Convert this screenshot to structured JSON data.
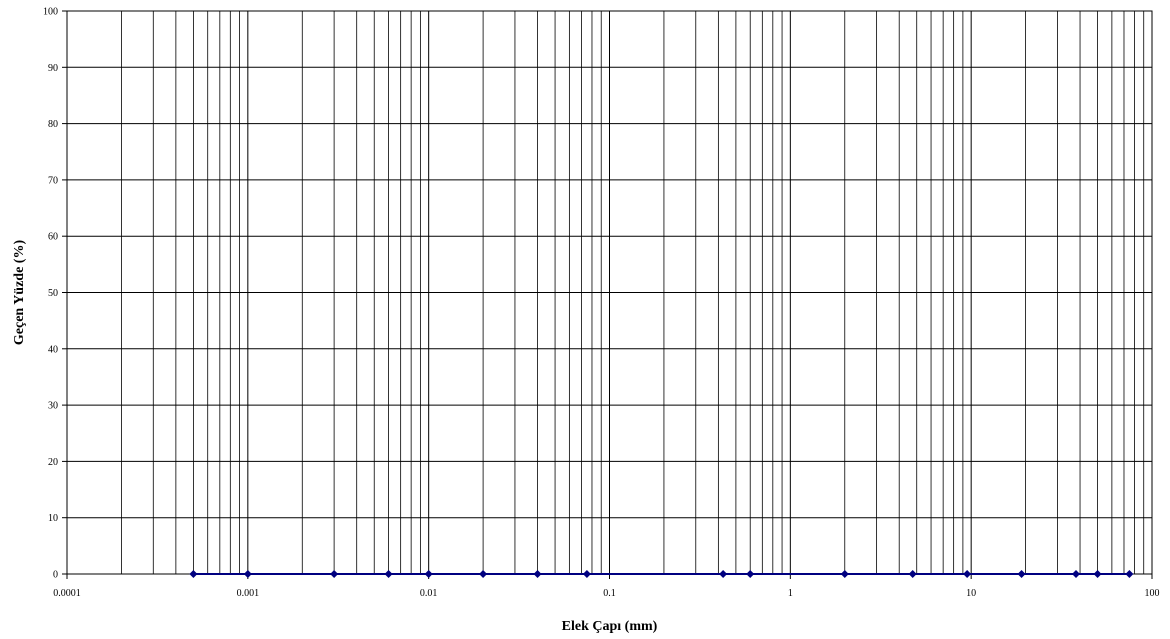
{
  "chart_data": {
    "type": "line",
    "title": "",
    "xlabel": "Elek Çapı (mm)",
    "ylabel": "Geçen Yüzde (%)",
    "x_scale": "log",
    "xlim": [
      0.0001,
      100
    ],
    "ylim": [
      0,
      100
    ],
    "x_ticks": [
      "0.0001",
      "0.001",
      "0.01",
      "0.1",
      "1",
      "10",
      "100"
    ],
    "y_ticks": [
      "0",
      "10",
      "20",
      "30",
      "40",
      "50",
      "60",
      "70",
      "80",
      "90",
      "100"
    ],
    "grid": true,
    "legend": "none",
    "series": [
      {
        "color": "#000080",
        "marker": "diamond",
        "x": [
          0.0005,
          0.001,
          0.003,
          0.006,
          0.01,
          0.02,
          0.04,
          0.075,
          0.425,
          0.6,
          2,
          4.75,
          9.5,
          19,
          38,
          50,
          75
        ],
        "y": [
          0,
          0,
          0,
          0,
          0,
          0,
          0,
          0,
          0,
          0,
          0,
          0,
          0,
          0,
          0,
          0,
          0
        ]
      }
    ]
  }
}
